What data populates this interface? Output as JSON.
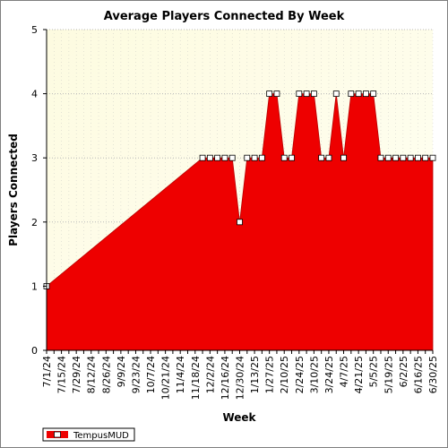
{
  "chart_data": {
    "type": "area",
    "title": "Average Players Connected By Week",
    "xlabel": "Week",
    "ylabel": "Players Connected",
    "ylim": [
      0,
      5
    ],
    "yticks": [
      0,
      1,
      2,
      3,
      4,
      5
    ],
    "grid": true,
    "legend_position": "bottom-left",
    "x": [
      "7/1/24",
      "7/8/24",
      "7/15/24",
      "7/22/24",
      "7/29/24",
      "8/5/24",
      "8/12/24",
      "8/19/24",
      "8/26/24",
      "9/2/24",
      "9/9/24",
      "9/16/24",
      "9/23/24",
      "9/30/24",
      "10/7/24",
      "10/14/24",
      "10/21/24",
      "10/28/24",
      "11/4/24",
      "11/11/24",
      "11/18/24",
      "11/25/24",
      "12/2/24",
      "12/9/24",
      "12/16/24",
      "12/23/24",
      "12/30/24",
      "1/6/25",
      "1/13/25",
      "1/20/25",
      "1/27/25",
      "2/3/25",
      "2/10/25",
      "2/17/25",
      "2/24/25",
      "3/3/25",
      "3/10/25",
      "3/17/25",
      "3/24/25",
      "3/31/25",
      "4/7/25",
      "4/14/25",
      "4/21/25",
      "4/28/25",
      "5/5/25",
      "5/12/25",
      "5/19/25",
      "5/26/25",
      "6/2/25",
      "6/9/25",
      "6/16/25",
      "6/23/25",
      "6/30/25"
    ],
    "tick_labels": [
      "7/1/24",
      "7/15/24",
      "7/29/24",
      "8/12/24",
      "8/26/24",
      "9/9/24",
      "9/23/24",
      "10/7/24",
      "10/21/24",
      "11/4/24",
      "11/18/24",
      "12/2/24",
      "12/16/24",
      "12/30/24",
      "1/13/25",
      "1/27/25",
      "2/10/25",
      "2/24/25",
      "3/10/25",
      "3/24/25",
      "4/7/25",
      "4/21/25",
      "5/5/25",
      "5/19/25",
      "6/2/25",
      "6/16/25",
      "6/30/25"
    ],
    "series": [
      {
        "name": "TempusMUD",
        "color": "#ee0000",
        "values": [
          1,
          null,
          null,
          null,
          null,
          null,
          null,
          null,
          null,
          null,
          null,
          null,
          null,
          null,
          null,
          null,
          null,
          null,
          null,
          null,
          null,
          3,
          3,
          3,
          3,
          3,
          2,
          3,
          3,
          3,
          4,
          4,
          3,
          3,
          4,
          4,
          4,
          3,
          3,
          4,
          3,
          4,
          4,
          4,
          4,
          3,
          3,
          3,
          3,
          3,
          3,
          3,
          3
        ]
      }
    ],
    "colors": {
      "plot_background": "#fffde6",
      "area": "#ee0000",
      "grid": "#b8b8b8"
    }
  }
}
